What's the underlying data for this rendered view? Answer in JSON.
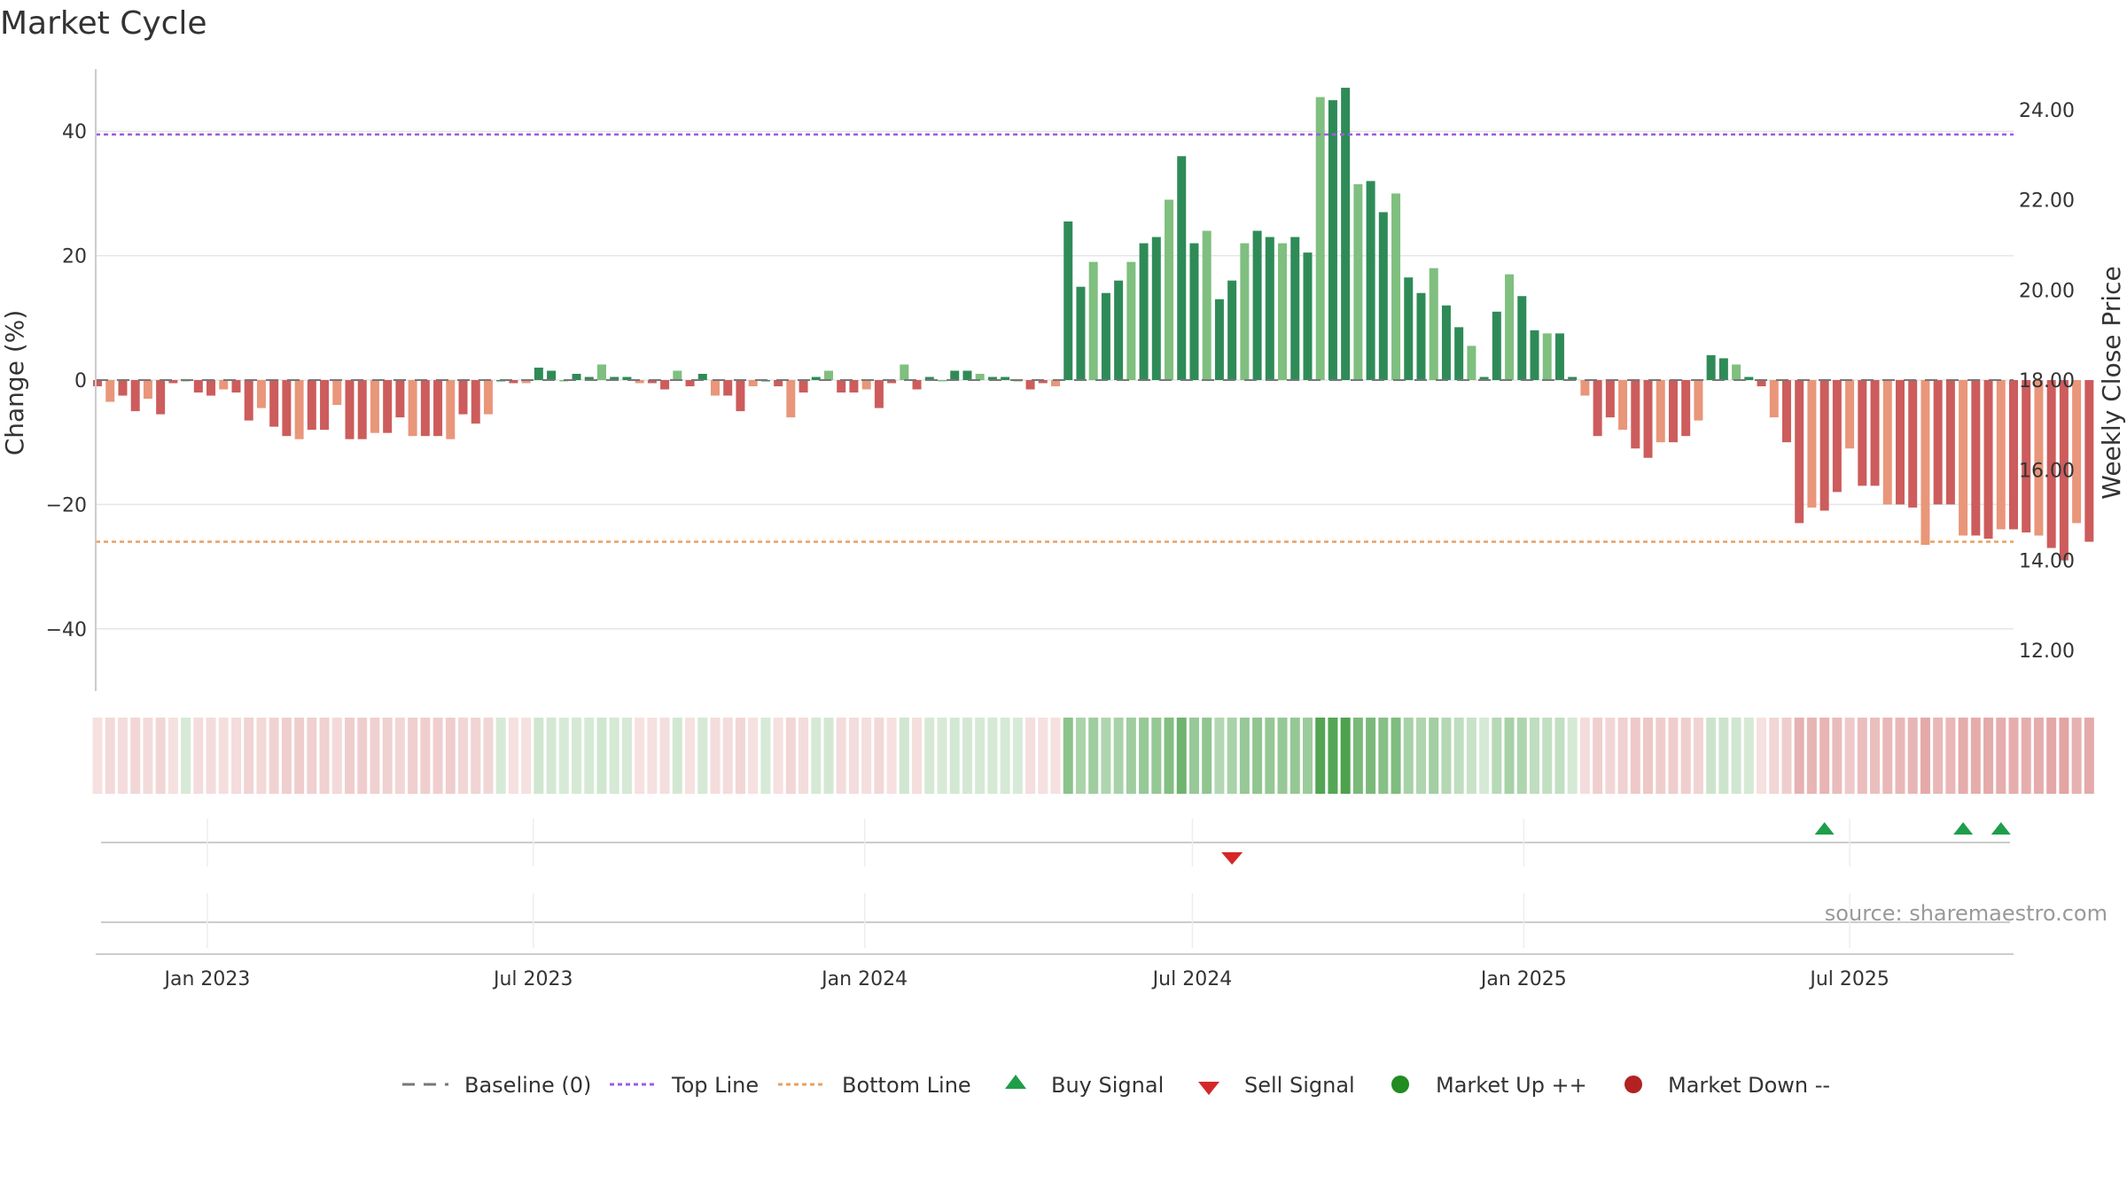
{
  "chart_data": {
    "type": "bar",
    "title": "Market Cycle",
    "ylabel": "Change (%)",
    "y2label": "Weekly Close Price",
    "ylim": [
      -50,
      50
    ],
    "y2lim": [
      11.1,
      24.9
    ],
    "yticks": [
      "40",
      "20",
      "0",
      "−20",
      "−40"
    ],
    "yticks_values": [
      40,
      20,
      0,
      -20,
      -40
    ],
    "y2ticks": [
      "24.00",
      "22.00",
      "20.00",
      "18.00",
      "16.00",
      "14.00",
      "12.00"
    ],
    "y2ticks_values": [
      24,
      22,
      20,
      18,
      16,
      14,
      12
    ],
    "x_range": [
      "2022-10-31",
      "2025-09-30"
    ],
    "xticks": [
      {
        "label": "Jan 2023",
        "date": "2023-01-01"
      },
      {
        "label": "Jul 2023",
        "date": "2023-07-01"
      },
      {
        "label": "Jan 2024",
        "date": "2024-01-01"
      },
      {
        "label": "Jul 2024",
        "date": "2024-07-01"
      },
      {
        "label": "Jan 2025",
        "date": "2025-01-01"
      },
      {
        "label": "Jul 2025",
        "date": "2025-07-01"
      }
    ],
    "top_line": 39.5,
    "bottom_line": -26,
    "first_week": "2022-11-01",
    "weekly_change": [
      -1,
      -3.5,
      -2.5,
      -5,
      -3,
      -5.5,
      -0.5,
      0,
      -2,
      -2.5,
      -1.5,
      -2,
      -6.5,
      -4.5,
      -7.5,
      -9,
      -9.5,
      -8,
      -8,
      -4,
      -9.5,
      -9.5,
      -8.5,
      -8.5,
      -6,
      -9,
      -9,
      -9,
      -9.5,
      -5.5,
      -7,
      -5.5,
      0,
      -0.5,
      -0.5,
      2,
      1.5,
      0,
      1,
      0.5,
      2.5,
      0.5,
      0.5,
      -0.5,
      -0.5,
      -1.5,
      1.5,
      -1,
      1,
      -2.5,
      -2.5,
      -5,
      -1,
      0,
      -1,
      -6,
      -2,
      0.5,
      1.5,
      -2,
      -2,
      -1.5,
      -4.5,
      -0.5,
      2.5,
      -1.5,
      0.5,
      0,
      1.5,
      1.5,
      1,
      0.5,
      0.5,
      0,
      -1.5,
      -0.5,
      -1,
      25.5,
      15,
      19,
      14,
      16,
      19,
      22,
      23,
      29,
      36,
      22,
      24,
      13,
      16,
      22,
      24,
      23,
      22,
      23,
      20.5,
      45.5,
      45,
      47,
      31.5,
      32,
      27,
      30,
      16.5,
      14,
      18,
      12,
      8.5,
      5.5,
      0.5,
      11,
      17,
      13.5,
      8,
      7.5,
      7.5,
      0.5,
      -2.5,
      -9,
      -6,
      -8,
      -11,
      -12.5,
      -10,
      -10,
      -9,
      -6.5,
      4,
      3.5,
      2.5,
      0.5,
      -1,
      -6,
      -10,
      -23,
      -20.5,
      -21,
      -18,
      -11,
      -17,
      -17,
      -20,
      -20,
      -20.5,
      -26.5,
      -20,
      -20,
      -25,
      -25,
      -25.5,
      -24,
      -24,
      -24.5,
      -25,
      -27,
      -29,
      -23,
      -26
    ],
    "sell_signals": [
      "2024-07-23"
    ],
    "buy_signals": [
      "2025-06-17",
      "2025-09-02",
      "2025-09-23"
    ],
    "source": "source: sharemaestro.com",
    "legend": [
      "Baseline (0)",
      "Top Line",
      "Bottom Line",
      "Buy Signal",
      "Sell Signal",
      "Market Up ++",
      "Market Down --"
    ],
    "legend_position": "bottom-center",
    "colors": {
      "up_dark": "#2e8b57",
      "up_light": "#7fbf7f",
      "down_dark": "#cd5c5c",
      "down_light": "#e9967a",
      "top_line": "#9f5ce0",
      "bottom_line": "#e8a060",
      "buy": "#1e9e4a",
      "sell": "#d62728",
      "market_up": "#228b22",
      "market_down": "#b22222",
      "baseline": "#777777"
    }
  }
}
